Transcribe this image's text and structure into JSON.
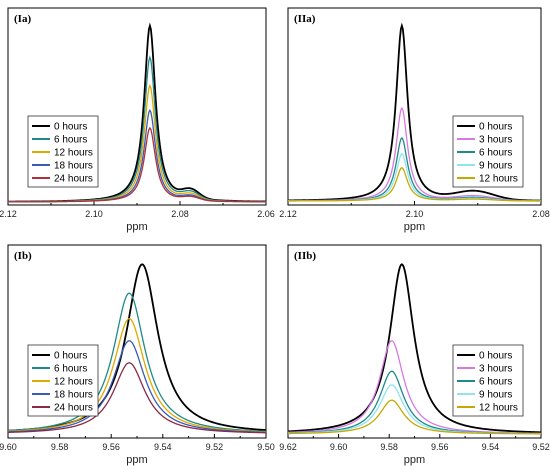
{
  "chart_data": [
    {
      "type": "line",
      "panel_label": "(Ia)",
      "xlabel": "ppm",
      "xlim": [
        2.12,
        2.06
      ],
      "x_reversed": true,
      "xticks": [
        2.12,
        2.1,
        2.08,
        2.06
      ],
      "xtick_labels": [
        "2.12",
        "2.10",
        "2.08",
        "2.06"
      ],
      "legend_position": "left",
      "series": [
        {
          "name": "0 hours",
          "color": "#000000",
          "peak_ppm": 2.087,
          "relative_height": 1.0
        },
        {
          "name": "6 hours",
          "color": "#1f8a8a",
          "peak_ppm": 2.087,
          "relative_height": 0.82
        },
        {
          "name": "12 hours",
          "color": "#e0a800",
          "peak_ppm": 2.087,
          "relative_height": 0.66
        },
        {
          "name": "18 hours",
          "color": "#3a5bb8",
          "peak_ppm": 2.087,
          "relative_height": 0.52
        },
        {
          "name": "24 hours",
          "color": "#b0303a",
          "peak_ppm": 2.087,
          "relative_height": 0.42
        }
      ]
    },
    {
      "type": "line",
      "panel_label": "(IIa)",
      "xlabel": "ppm",
      "xlim": [
        2.12,
        2.08
      ],
      "x_reversed": true,
      "xticks": [
        2.12,
        2.1,
        2.08
      ],
      "xtick_labels": [
        "2.12",
        "2.10",
        "2.08"
      ],
      "legend_position": "right",
      "series": [
        {
          "name": "0 hours",
          "color": "#000000",
          "peak_ppm": 2.102,
          "relative_height": 1.0
        },
        {
          "name": "3 hours",
          "color": "#d67ae0",
          "peak_ppm": 2.102,
          "relative_height": 0.53
        },
        {
          "name": "6 hours",
          "color": "#1f8a8a",
          "peak_ppm": 2.102,
          "relative_height": 0.36
        },
        {
          "name": "9 hours",
          "color": "#8fe4ee",
          "peak_ppm": 2.102,
          "relative_height": 0.27
        },
        {
          "name": "12 hours",
          "color": "#c8a800",
          "peak_ppm": 2.102,
          "relative_height": 0.19
        }
      ]
    },
    {
      "type": "line",
      "panel_label": "(Ib)",
      "xlabel": "ppm",
      "xlim": [
        9.6,
        9.5
      ],
      "x_reversed": true,
      "xticks": [
        9.6,
        9.58,
        9.56,
        9.54,
        9.52,
        9.5
      ],
      "xtick_labels": [
        "9.60",
        "9.58",
        "9.56",
        "9.54",
        "9.52",
        "9.50"
      ],
      "legend_position": "left",
      "series": [
        {
          "name": "0 hours",
          "color": "#000000",
          "peak_ppm": 9.548,
          "relative_height": 1.0
        },
        {
          "name": "6 hours",
          "color": "#1f8a8a",
          "peak_ppm": 9.553,
          "relative_height": 0.83
        },
        {
          "name": "12 hours",
          "color": "#e0a800",
          "peak_ppm": 9.553,
          "relative_height": 0.68
        },
        {
          "name": "18 hours",
          "color": "#3a5bb8",
          "peak_ppm": 9.553,
          "relative_height": 0.55
        },
        {
          "name": "24 hours",
          "color": "#8a2a4a",
          "peak_ppm": 9.553,
          "relative_height": 0.42
        }
      ]
    },
    {
      "type": "line",
      "panel_label": "(IIb)",
      "xlabel": "ppm",
      "xlim": [
        9.62,
        9.52
      ],
      "x_reversed": true,
      "xticks": [
        9.62,
        9.6,
        9.58,
        9.56,
        9.54,
        9.52
      ],
      "xtick_labels": [
        "9.62",
        "9.60",
        "9.58",
        "9.56",
        "9.54",
        "9.52"
      ],
      "legend_position": "right",
      "series": [
        {
          "name": "0 hours",
          "color": "#000000",
          "peak_ppm": 9.575,
          "relative_height": 1.0
        },
        {
          "name": "3 hours",
          "color": "#d67ae0",
          "peak_ppm": 9.579,
          "relative_height": 0.55
        },
        {
          "name": "6 hours",
          "color": "#1f8a8a",
          "peak_ppm": 9.579,
          "relative_height": 0.37
        },
        {
          "name": "9 hours",
          "color": "#8fe4ee",
          "peak_ppm": 9.579,
          "relative_height": 0.29
        },
        {
          "name": "12 hours",
          "color": "#c8a800",
          "peak_ppm": 9.579,
          "relative_height": 0.2
        }
      ]
    }
  ]
}
